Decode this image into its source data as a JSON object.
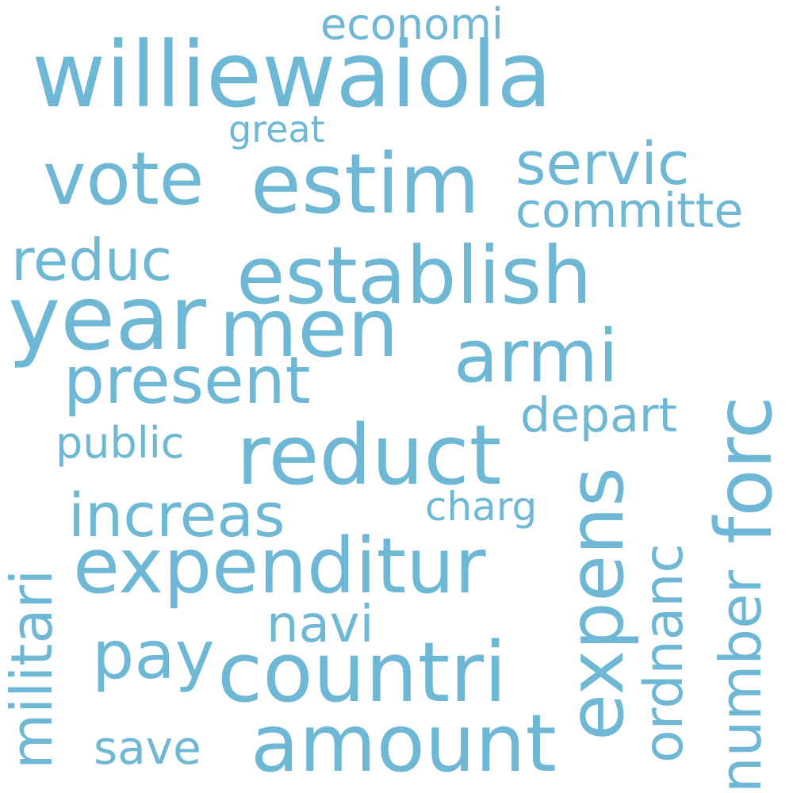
{
  "colors": {
    "background": "#ffffff",
    "word": "#6fb8d5"
  },
  "words": [
    "williewaiola",
    "economi",
    "great",
    "vote",
    "estim",
    "servic",
    "committe",
    "reduc",
    "establish",
    "year",
    "men",
    "armi",
    "present",
    "forc",
    "depart",
    "public",
    "reduct",
    "militari",
    "increas",
    "charg",
    "expens",
    "expenditur",
    "ordnanc",
    "number",
    "navi",
    "pay",
    "countri",
    "amount",
    "save"
  ]
}
